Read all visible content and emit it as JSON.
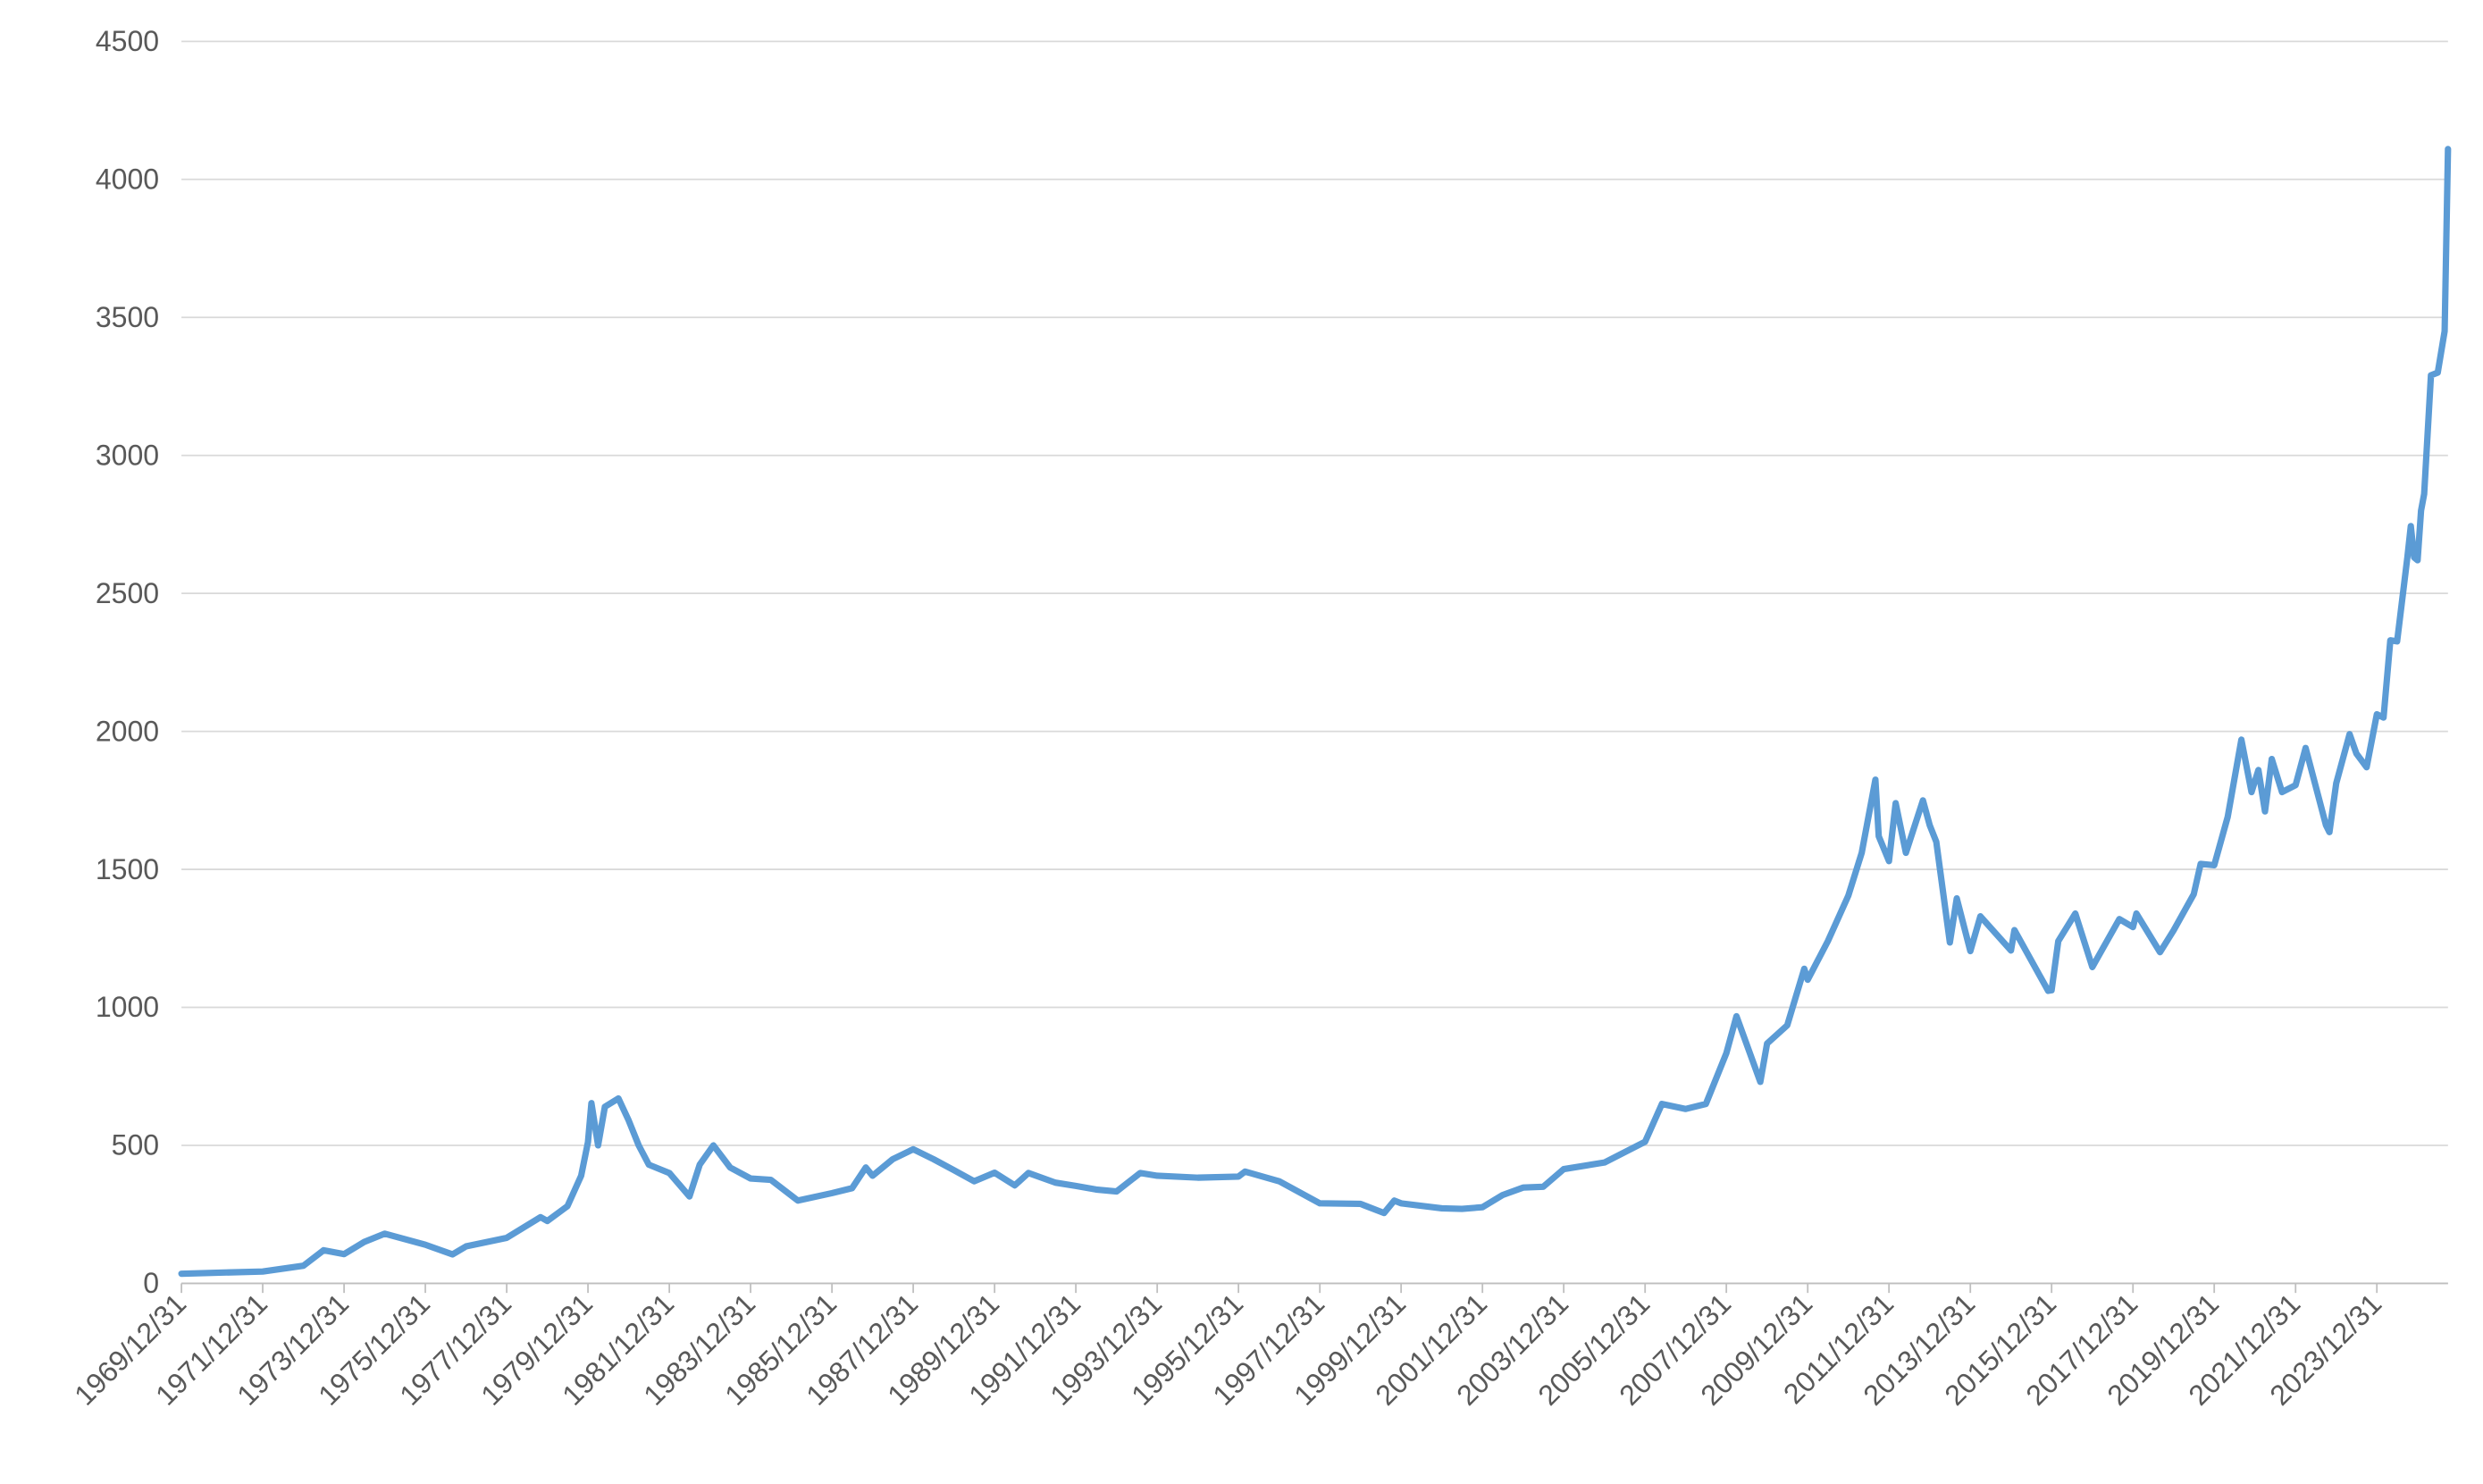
{
  "chart_data": {
    "type": "line",
    "x": [
      "1969/12/31",
      "1971/12/31",
      "1972/12/31",
      "1973/06/30",
      "1973/12/31",
      "1974/06/30",
      "1974/12/31",
      "1975/12/31",
      "1976/08/31",
      "1976/12/31",
      "1977/12/31",
      "1978/10/31",
      "1978/12/31",
      "1979/06/30",
      "1979/10/31",
      "1979/12/31",
      "1980/01/31",
      "1980/03/31",
      "1980/05/31",
      "1980/09/30",
      "1980/12/31",
      "1981/03/31",
      "1981/06/30",
      "1981/12/31",
      "1982/06/30",
      "1982/09/30",
      "1983/01/31",
      "1983/06/30",
      "1983/12/31",
      "1984/06/30",
      "1985/02/28",
      "1985/12/31",
      "1986/06/30",
      "1986/10/31",
      "1986/12/31",
      "1987/06/30",
      "1987/12/31",
      "1988/06/30",
      "1988/12/31",
      "1989/06/30",
      "1989/12/31",
      "1990/06/30",
      "1990/10/31",
      "1991/06/30",
      "1991/12/31",
      "1992/06/30",
      "1992/12/31",
      "1993/07/31",
      "1993/12/31",
      "1994/12/31",
      "1995/12/31",
      "1996/02/28",
      "1996/12/31",
      "1997/12/31",
      "1998/12/31",
      "1999/07/31",
      "1999/10/31",
      "1999/12/31",
      "2000/12/31",
      "2001/06/30",
      "2001/12/31",
      "2002/06/30",
      "2002/12/31",
      "2003/06/30",
      "2003/12/31",
      "2004/12/31",
      "2005/12/31",
      "2006/05/31",
      "2006/12/31",
      "2007/06/30",
      "2007/12/31",
      "2008/03/31",
      "2008/10/31",
      "2008/12/31",
      "2009/06/30",
      "2009/11/30",
      "2009/12/31",
      "2010/06/30",
      "2010/12/31",
      "2011/04/30",
      "2011/08/31",
      "2011/09/30",
      "2011/12/31",
      "2012/02/29",
      "2012/05/31",
      "2012/10/31",
      "2012/12/31",
      "2013/02/28",
      "2013/06/30",
      "2013/08/31",
      "2013/12/31",
      "2014/03/31",
      "2014/12/31",
      "2015/01/31",
      "2015/11/30",
      "2015/12/31",
      "2016/02/29",
      "2016/07/31",
      "2016/12/31",
      "2017/08/31",
      "2017/12/31",
      "2018/01/31",
      "2018/08/31",
      "2018/12/31",
      "2019/06/30",
      "2019/08/31",
      "2019/12/31",
      "2020/04/30",
      "2020/08/31",
      "2020/11/30",
      "2021/01/31",
      "2021/03/31",
      "2021/05/31",
      "2021/08/31",
      "2021/12/31",
      "2022/03/31",
      "2022/09/30",
      "2022/10/31",
      "2022/12/31",
      "2023/04/30",
      "2023/06/30",
      "2023/09/30",
      "2023/12/31",
      "2024/02/29",
      "2024/04/30",
      "2024/06/30",
      "2024/09/30",
      "2024/10/31",
      "2024/11/30",
      "2024/12/31",
      "2025/01/31",
      "2025/02/28",
      "2025/04/30",
      "2025/06/30",
      "2025/08/31",
      "2025/09/30"
    ],
    "series": [
      {
        "color": "#5b9bd5",
        "values": [
          35,
          43,
          64,
          120,
          106,
          150,
          180,
          140,
          105,
          134,
          165,
          240,
          226,
          280,
          390,
          512,
          653,
          500,
          640,
          670,
          590,
          500,
          430,
          400,
          315,
          430,
          500,
          420,
          380,
          375,
          300,
          327,
          345,
          420,
          390,
          450,
          486,
          450,
          410,
          370,
          401,
          355,
          400,
          365,
          353,
          340,
          333,
          400,
          390,
          383,
          387,
          405,
          370,
          290,
          288,
          255,
          300,
          290,
          272,
          270,
          276,
          320,
          347,
          350,
          414,
          438,
          513,
          650,
          632,
          650,
          834,
          968,
          730,
          869,
          935,
          1140,
          1100,
          1240,
          1405,
          1560,
          1825,
          1620,
          1530,
          1740,
          1560,
          1750,
          1660,
          1600,
          1235,
          1395,
          1204,
          1330,
          1206,
          1280,
          1060,
          1062,
          1240,
          1340,
          1146,
          1320,
          1291,
          1340,
          1200,
          1279,
          1410,
          1520,
          1515,
          1690,
          1970,
          1780,
          1860,
          1710,
          1900,
          1780,
          1805,
          1940,
          1660,
          1635,
          1812,
          1990,
          1920,
          1870,
          2062,
          2050,
          2330,
          2326,
          2630,
          2744,
          2630,
          2620,
          2800,
          2860,
          3290,
          3300,
          3450,
          4110
        ]
      }
    ],
    "xlim": [
      "1969/12/31",
      "2025/09/30"
    ],
    "xticks": [
      "1969/12/31",
      "1971/12/31",
      "1973/12/31",
      "1975/12/31",
      "1977/12/31",
      "1979/12/31",
      "1981/12/31",
      "1983/12/31",
      "1985/12/31",
      "1987/12/31",
      "1989/12/31",
      "1991/12/31",
      "1993/12/31",
      "1995/12/31",
      "1997/12/31",
      "1999/12/31",
      "2001/12/31",
      "2003/12/31",
      "2005/12/31",
      "2007/12/31",
      "2009/12/31",
      "2011/12/31",
      "2013/12/31",
      "2015/12/31",
      "2017/12/31",
      "2019/12/31",
      "2021/12/31",
      "2023/12/31"
    ],
    "ylim": [
      0,
      4500
    ],
    "yticks": [
      0,
      500,
      1000,
      1500,
      2000,
      2500,
      3000,
      3500,
      4000,
      4500
    ],
    "grid": true
  }
}
